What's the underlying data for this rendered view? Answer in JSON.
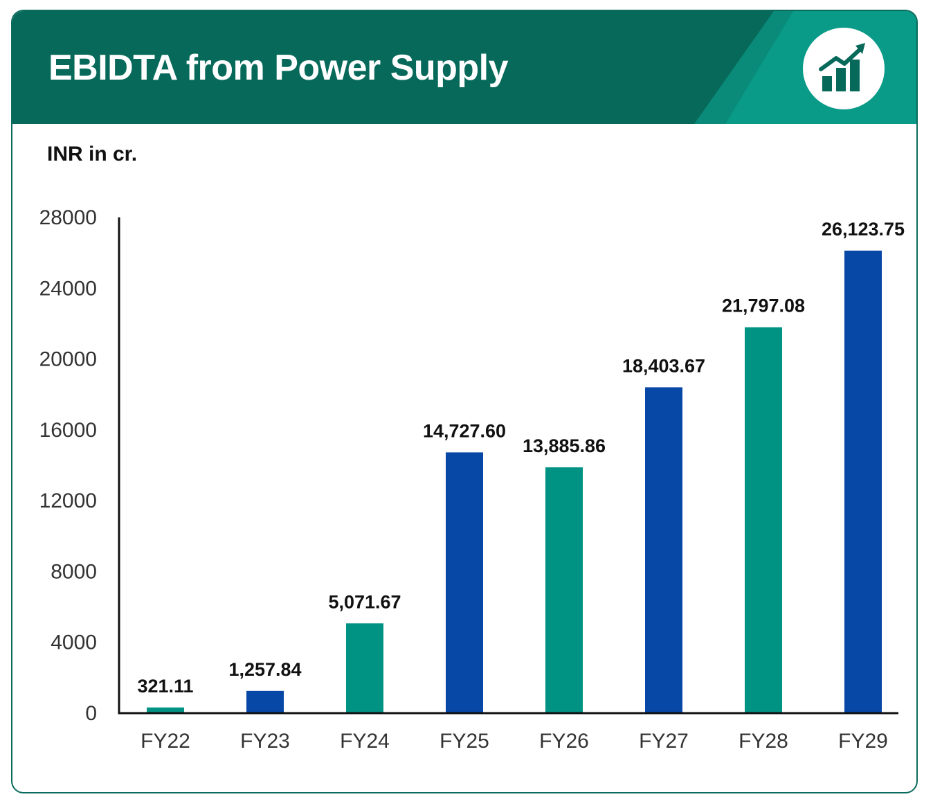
{
  "header": {
    "title": "EBIDTA from Power Supply",
    "icon": "growth-chart-icon",
    "color": "#07695a",
    "accent": "#0a9a88"
  },
  "chart_data": {
    "type": "bar",
    "ylabel": "INR in cr.",
    "categories": [
      "FY22",
      "FY23",
      "FY24",
      "FY25",
      "FY26",
      "FY27",
      "FY28",
      "FY29"
    ],
    "values": [
      321.11,
      1257.84,
      5071.67,
      14727.6,
      13885.86,
      18403.67,
      21797.08,
      26123.75
    ],
    "value_labels": [
      "321.11",
      "1,257.84",
      "5,071.67",
      "14,727.60",
      "13,885.86",
      "18,403.67",
      "21,797.08",
      "26,123.75"
    ],
    "bar_colors": [
      "#009383",
      "#0747a6",
      "#009383",
      "#0747a6",
      "#009383",
      "#0747a6",
      "#009383",
      "#0747a6"
    ],
    "ylim": [
      0,
      28000
    ],
    "yticks": [
      "0",
      "4000",
      "8000",
      "12000",
      "16000",
      "20000",
      "24000",
      "28000"
    ],
    "grid": false,
    "legend": "none"
  }
}
